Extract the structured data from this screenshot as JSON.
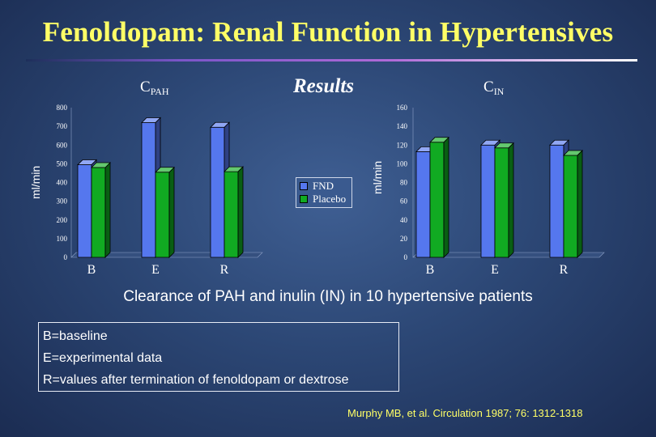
{
  "slide": {
    "title": "Fenoldopam: Renal Function in Hypertensives",
    "subtitle": "Results",
    "caption": "Clearance of PAH and inulin (IN) in 10 hypertensive patients",
    "notes": [
      "B=baseline",
      "E=experimental data",
      "R=values after termination of fenoldopam or dextrose"
    ],
    "citation": "Murphy MB, et al. Circulation 1987; 76: 1312-1318"
  },
  "colors": {
    "fnd": "#5577ee",
    "placebo": "#11aa22",
    "title": "#ffff66"
  },
  "chart_data": [
    {
      "type": "bar",
      "title_main": "C",
      "title_sub": "PAH",
      "ylabel": "ml/min",
      "ylim": [
        0,
        800
      ],
      "yticks": [
        "0",
        "100",
        "200",
        "300",
        "400",
        "500",
        "600",
        "700",
        "800"
      ],
      "categories": [
        "B",
        "E",
        "R"
      ],
      "series": [
        {
          "name": "FND",
          "values": [
            495,
            720,
            695
          ]
        },
        {
          "name": "Placebo",
          "values": [
            480,
            455,
            458
          ]
        }
      ]
    },
    {
      "type": "bar",
      "title_main": "C",
      "title_sub": "IN",
      "ylabel": "ml/min",
      "ylim": [
        0,
        160
      ],
      "yticks": [
        "0",
        "20",
        "40",
        "60",
        "80",
        "100",
        "120",
        "140",
        "160"
      ],
      "categories": [
        "B",
        "E",
        "R"
      ],
      "series": [
        {
          "name": "FND",
          "values": [
            113,
            120,
            120
          ]
        },
        {
          "name": "Placebo",
          "values": [
            123,
            117,
            109
          ]
        }
      ]
    }
  ]
}
